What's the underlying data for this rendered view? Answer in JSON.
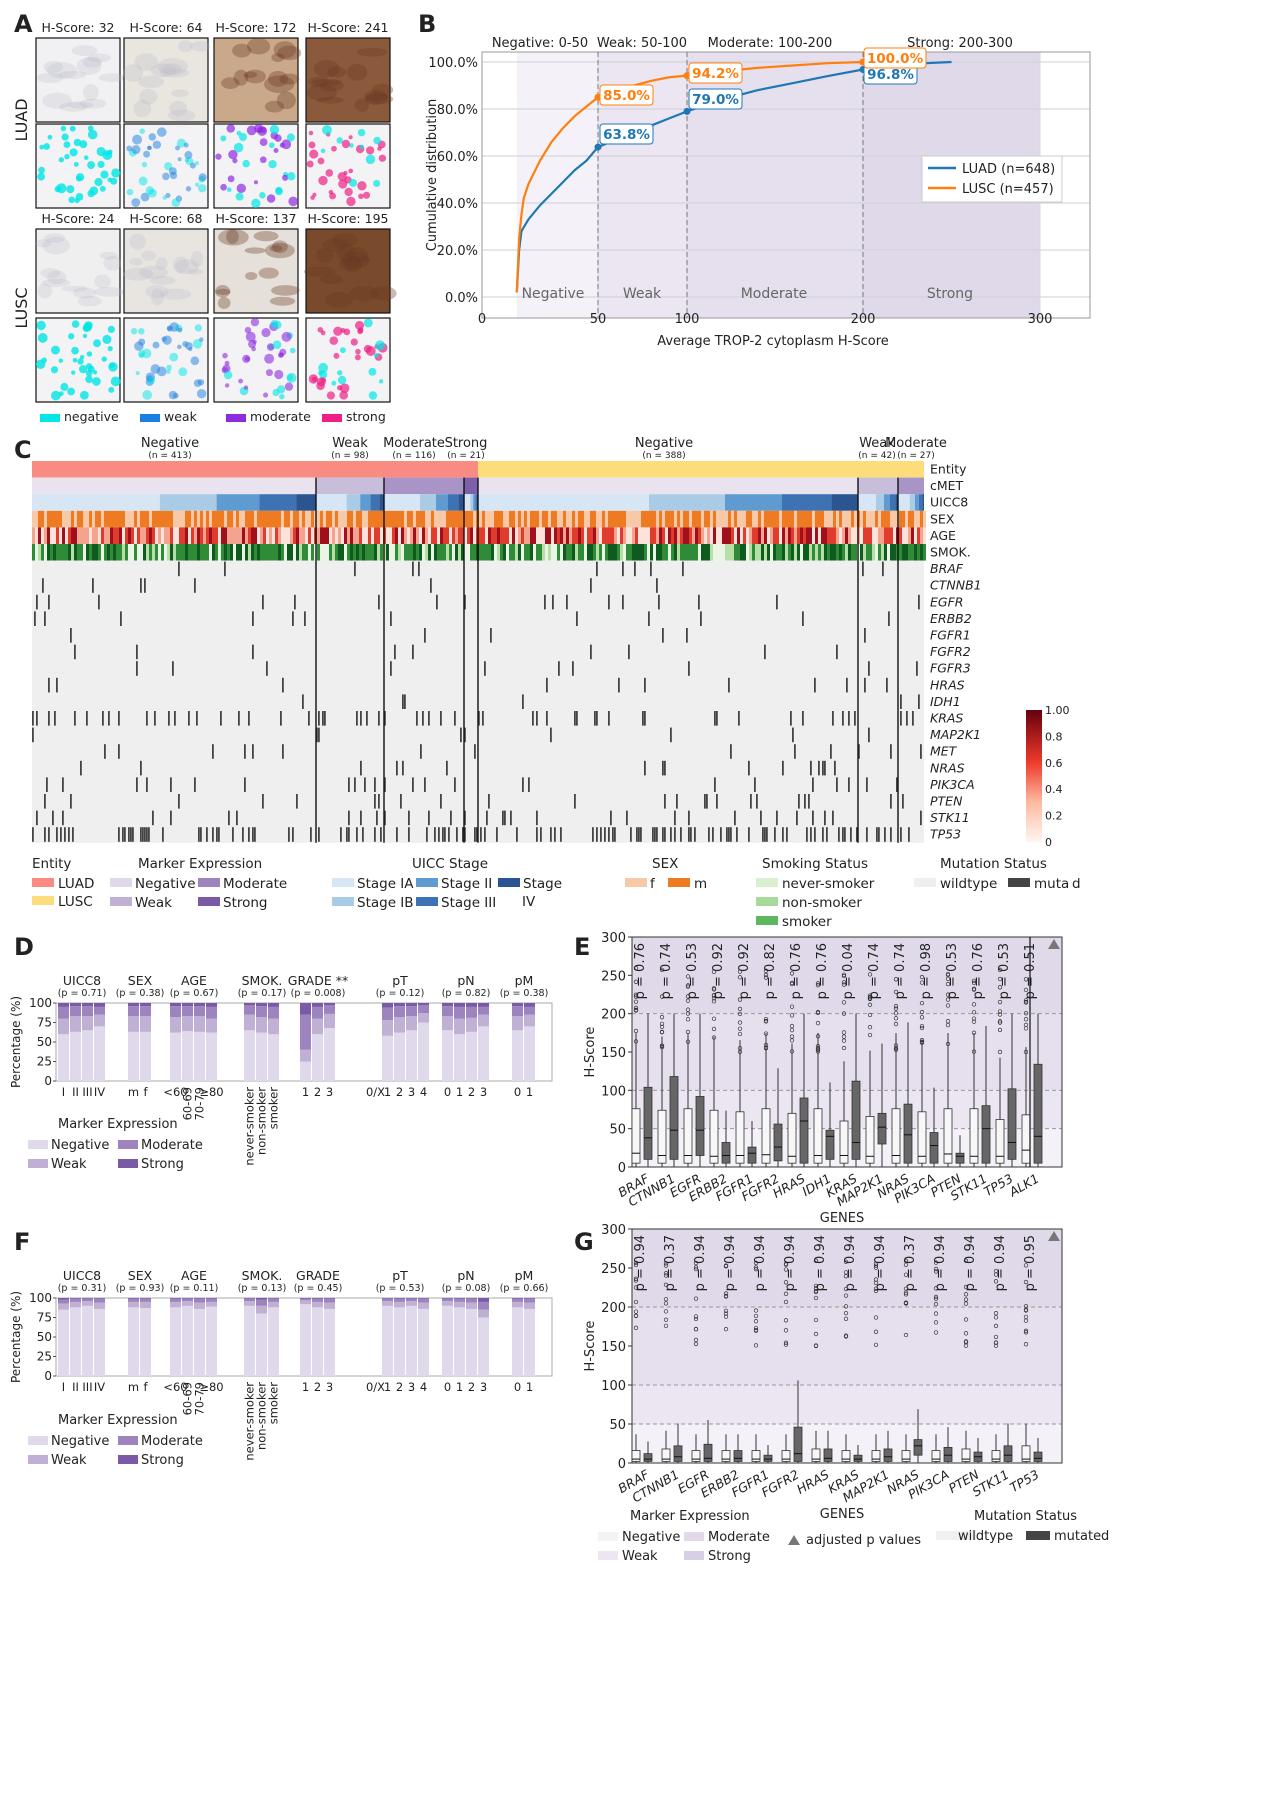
{
  "panel_letters": [
    "A",
    "B",
    "C",
    "D",
    "E",
    "F",
    "G"
  ],
  "colors": {
    "luad": "#1f77b4",
    "lusc": "#ff7f0e",
    "negative_region": "#f4f2f8",
    "weak_region": "#ebe6f1",
    "moderate_region": "#e6e0ee",
    "strong_region": "#e0d9ea",
    "marker_negative": "#dfd9eb",
    "marker_weak": "#bfb0d4",
    "marker_moderate": "#9d84bf",
    "marker_strong": "#7a5aa6",
    "wildtype": "#efefef",
    "mutated": "#444444",
    "seg_negative": "#00e5e5",
    "seg_weak": "#1a7fe0",
    "seg_moderate": "#8f2be0",
    "seg_strong": "#ee1f85"
  },
  "panel_a": {
    "row_labels": [
      "LUAD",
      "LUSC"
    ],
    "luad_scores": [
      "H-Score: 32",
      "H-Score: 64",
      "H-Score: 172",
      "H-Score: 241"
    ],
    "lusc_scores": [
      "H-Score: 24",
      "H-Score: 68",
      "H-Score: 137",
      "H-Score: 195"
    ],
    "legend": [
      "negative",
      "weak",
      "moderate",
      "strong"
    ]
  },
  "panel_b": {
    "range_labels": [
      "Negative: 0-50",
      "Weak: 50-100",
      "Moderate: 100-200",
      "Strong: 200-300"
    ],
    "region_labels": [
      "Negative",
      "Weak",
      "Moderate",
      "Strong"
    ],
    "callouts_luad": [
      "63.8%",
      "79.0%",
      "96.8%"
    ],
    "callouts_lusc": [
      "85.0%",
      "94.2%",
      "100.0%"
    ],
    "legend": [
      "LUAD (n=648)",
      "LUSC (n=457)"
    ]
  },
  "chart_data": [
    {
      "type": "line",
      "xlabel": "Average TROP-2 cytoplasm H-Score",
      "ylabel": "Cumulative distribution",
      "xlim": [
        0,
        300
      ],
      "ylim": [
        0,
        100
      ],
      "xticks": [
        "0",
        "50",
        "100",
        "200",
        "300"
      ],
      "yticks": [
        "0.0%",
        "20.0%",
        "40.0%",
        "60.0%",
        "80.0%",
        "100.0%"
      ],
      "x_scale": "piecewise (0-50, 50-100, 100-200, 200-300)",
      "legend_position": "right",
      "series": [
        {
          "name": "LUAD (n=648)",
          "x": [
            15,
            16,
            17,
            20,
            25,
            30,
            35,
            40,
            45,
            50,
            60,
            70,
            80,
            90,
            100,
            120,
            140,
            160,
            180,
            200,
            220,
            250
          ],
          "y": [
            2,
            20,
            28,
            33,
            39,
            44,
            49,
            54,
            58,
            63.8,
            67,
            70,
            73,
            76,
            79.0,
            84,
            88,
            91,
            94,
            96.8,
            99,
            100
          ]
        },
        {
          "name": "LUSC (n=457)",
          "x": [
            15,
            16,
            17,
            18,
            20,
            25,
            30,
            35,
            40,
            45,
            50,
            60,
            70,
            80,
            90,
            100,
            120,
            140,
            160,
            180,
            200
          ],
          "y": [
            2,
            25,
            35,
            42,
            48,
            58,
            66,
            72,
            77,
            81,
            85.0,
            88,
            90,
            92,
            93.5,
            94.2,
            96,
            97.5,
            98.5,
            99.5,
            100.0
          ]
        }
      ]
    },
    {
      "type": "heatmap",
      "groups": [
        {
          "label": "Negative",
          "n": "(n = 413)"
        },
        {
          "label": "Weak",
          "n": "(n = 98)"
        },
        {
          "label": "Moderate",
          "n": "(n = 116)"
        },
        {
          "label": "Strong",
          "n": "(n = 21)"
        },
        {
          "label": "Negative",
          "n": "(n = 388)"
        },
        {
          "label": "Weak",
          "n": "(n = 42)"
        },
        {
          "label": "Moderate",
          "n": "(n = 27)"
        }
      ],
      "rows": [
        "Entity",
        "cMET",
        "UICC8",
        "SEX",
        "AGE",
        "SMOK.",
        "BRAF",
        "CTNNB1",
        "EGFR",
        "ERBB2",
        "FGFR1",
        "FGFR2",
        "FGFR3",
        "HRAS",
        "IDH1",
        "KRAS",
        "MAP2K1",
        "MET",
        "NRAS",
        "PIK3CA",
        "PTEN",
        "STK11",
        "TP53"
      ],
      "colorbar_ticks": [
        "0",
        "0.2",
        "0.4",
        "0.6",
        "0.8",
        "1.00"
      ]
    },
    {
      "type": "bar",
      "title": "",
      "ylabel": "Percentage (%)",
      "ylim": [
        0,
        100
      ],
      "yticks": [
        "0",
        "25",
        "50",
        "75",
        "100"
      ],
      "groups": [
        {
          "name": "UICC8",
          "p": "(p = 0.71)",
          "categories": [
            "I",
            "II",
            "III",
            "IV"
          ]
        },
        {
          "name": "SEX",
          "p": "(p = 0.38)",
          "categories": [
            "m",
            "f"
          ]
        },
        {
          "name": "AGE",
          "p": "(p = 0.67)",
          "categories": [
            "<60",
            "60-69",
            "70-79",
            "≥80"
          ]
        },
        {
          "name": "SMOK.",
          "p": "(p = 0.17)",
          "categories": [
            "never-smoker",
            "non-smoker",
            "smoker"
          ]
        },
        {
          "name": "GRADE **",
          "p": "(p = 0.008)",
          "categories": [
            "1",
            "2",
            "3"
          ]
        },
        {
          "name": "pT",
          "p": "(p = 0.12)",
          "categories": [
            "0/X",
            "1",
            "2",
            "3",
            "4"
          ]
        },
        {
          "name": "pN",
          "p": "(p = 0.82)",
          "categories": [
            "0",
            "1",
            "2",
            "3"
          ]
        },
        {
          "name": "pM",
          "p": "(p = 0.38)",
          "categories": [
            "0",
            "1"
          ]
        }
      ],
      "stacks": [
        "Negative",
        "Weak",
        "Moderate",
        "Strong"
      ],
      "values": [
        [
          60,
          20,
          15,
          5
        ],
        [
          63,
          20,
          13,
          4
        ],
        [
          65,
          18,
          13,
          4
        ],
        [
          70,
          15,
          10,
          5
        ],
        [
          63,
          20,
          13,
          4
        ],
        [
          63,
          20,
          13,
          4
        ],
        [
          62,
          20,
          14,
          4
        ],
        [
          64,
          19,
          13,
          4
        ],
        [
          63,
          20,
          13,
          4
        ],
        [
          62,
          18,
          15,
          5
        ],
        [
          65,
          20,
          12,
          3
        ],
        [
          62,
          20,
          14,
          4
        ],
        [
          60,
          20,
          15,
          5
        ],
        [
          25,
          15,
          45,
          15
        ],
        [
          60,
          20,
          15,
          5
        ],
        [
          68,
          18,
          11,
          3
        ],
        [
          0,
          0,
          0,
          0
        ],
        [
          58,
          20,
          16,
          6
        ],
        [
          62,
          20,
          14,
          4
        ],
        [
          65,
          18,
          13,
          4
        ],
        [
          75,
          12,
          10,
          3
        ],
        [
          65,
          18,
          13,
          4
        ],
        [
          60,
          20,
          15,
          5
        ],
        [
          63,
          18,
          14,
          5
        ],
        [
          70,
          15,
          10,
          5
        ],
        [
          65,
          18,
          13,
          4
        ],
        [
          70,
          15,
          10,
          5
        ]
      ],
      "legend_title": "Marker Expression"
    },
    {
      "type": "box",
      "ylabel": "H-Score",
      "xlabel": "GENES",
      "ylim": [
        0,
        300
      ],
      "yticks": [
        "0",
        "50",
        "100",
        "150",
        "200",
        "250",
        "300"
      ],
      "genes": [
        "BRAF",
        "CTNNB1",
        "EGFR",
        "ERBB2",
        "FGFR1",
        "FGFR2",
        "HRAS",
        "IDH1",
        "KRAS",
        "MAP2K1",
        "NRAS",
        "PIK3CA",
        "PTEN",
        "STK11",
        "TP53",
        "ALK1"
      ],
      "p_values": [
        "p = 0.76",
        "p = 0.74",
        "p = 0.53",
        "p = 0.92",
        "p = 0.92",
        "p = 0.82",
        "p = 0.76",
        "p = 0.76",
        "p = 0.04",
        "p = 0.74",
        "p = 0.74",
        "p = 0.98",
        "p = 0.53",
        "p = 0.76",
        "p = 0.53",
        "p = 0.51"
      ],
      "wildtype_box": [
        [
          18,
          5,
          76
        ],
        [
          15,
          5,
          74
        ],
        [
          15,
          5,
          76
        ],
        [
          14,
          5,
          74
        ],
        [
          15,
          5,
          72
        ],
        [
          16,
          5,
          76
        ],
        [
          14,
          5,
          70
        ],
        [
          15,
          5,
          76
        ],
        [
          15,
          5,
          60
        ],
        [
          14,
          5,
          66
        ],
        [
          15,
          5,
          76
        ],
        [
          14,
          5,
          72
        ],
        [
          17,
          5,
          76
        ],
        [
          14,
          5,
          76
        ],
        [
          14,
          5,
          62
        ],
        [
          22,
          5,
          68
        ]
      ],
      "mutated_box": [
        [
          38,
          10,
          104
        ],
        [
          48,
          10,
          118
        ],
        [
          48,
          15,
          92
        ],
        [
          15,
          5,
          32
        ],
        [
          18,
          5,
          26
        ],
        [
          26,
          8,
          56
        ],
        [
          60,
          5,
          90
        ],
        [
          40,
          10,
          48
        ],
        [
          32,
          10,
          112
        ],
        [
          52,
          30,
          70
        ],
        [
          42,
          5,
          82
        ],
        [
          28,
          5,
          45
        ],
        [
          14,
          5,
          18
        ],
        [
          50,
          5,
          80
        ],
        [
          32,
          10,
          102
        ],
        [
          40,
          5,
          134
        ]
      ]
    },
    {
      "type": "bar",
      "ylabel": "Percentage (%)",
      "ylim": [
        0,
        100
      ],
      "yticks": [
        "0",
        "25",
        "50",
        "75",
        "100"
      ],
      "groups": [
        {
          "name": "UICC8",
          "p": "(p = 0.31)",
          "categories": [
            "I",
            "II",
            "III",
            "IV"
          ]
        },
        {
          "name": "SEX",
          "p": "(p = 0.93)",
          "categories": [
            "m",
            "f"
          ]
        },
        {
          "name": "AGE",
          "p": "(p = 0.11)",
          "categories": [
            "<60",
            "60-69",
            "70-79",
            "≥80"
          ]
        },
        {
          "name": "SMOK.",
          "p": "(p = 0.13)",
          "categories": [
            "never-smoker",
            "non-smoker",
            "smoker"
          ]
        },
        {
          "name": "GRADE",
          "p": "(p = 0.45)",
          "categories": [
            "1",
            "2",
            "3"
          ]
        },
        {
          "name": "pT",
          "p": "(p = 0.53)",
          "categories": [
            "0/X",
            "1",
            "2",
            "3",
            "4"
          ]
        },
        {
          "name": "pN",
          "p": "(p = 0.08)",
          "categories": [
            "0",
            "1",
            "2",
            "3"
          ]
        },
        {
          "name": "pM",
          "p": "(p = 0.66)",
          "categories": [
            "0",
            "1"
          ]
        }
      ],
      "stacks": [
        "Negative",
        "Weak",
        "Moderate",
        "Strong"
      ],
      "values": [
        [
          85,
          8,
          5,
          2
        ],
        [
          88,
          7,
          4,
          1
        ],
        [
          90,
          6,
          3,
          1
        ],
        [
          86,
          8,
          5,
          1
        ],
        [
          88,
          7,
          4,
          1
        ],
        [
          87,
          8,
          4,
          1
        ],
        [
          88,
          7,
          4,
          1
        ],
        [
          90,
          6,
          3,
          1
        ],
        [
          86,
          8,
          5,
          1
        ],
        [
          89,
          6,
          4,
          1
        ],
        [
          90,
          6,
          3,
          1
        ],
        [
          80,
          10,
          8,
          2
        ],
        [
          88,
          7,
          4,
          1
        ],
        [
          92,
          5,
          2,
          1
        ],
        [
          88,
          7,
          4,
          1
        ],
        [
          86,
          8,
          5,
          1
        ],
        [
          0,
          0,
          0,
          0
        ],
        [
          90,
          6,
          3,
          1
        ],
        [
          88,
          7,
          4,
          1
        ],
        [
          90,
          6,
          3,
          1
        ],
        [
          86,
          8,
          5,
          1
        ],
        [
          90,
          6,
          3,
          1
        ],
        [
          88,
          7,
          4,
          1
        ],
        [
          86,
          8,
          5,
          1
        ],
        [
          75,
          10,
          10,
          5
        ],
        [
          88,
          7,
          4,
          1
        ],
        [
          86,
          8,
          5,
          1
        ]
      ],
      "legend_title": "Marker Expression"
    },
    {
      "type": "box",
      "ylabel": "H-Score",
      "xlabel": "GENES",
      "ylim": [
        0,
        300
      ],
      "yticks": [
        "0",
        "50",
        "100",
        "150",
        "200",
        "250",
        "300"
      ],
      "genes": [
        "BRAF",
        "CTNNB1",
        "EGFR",
        "ERBB2",
        "FGFR1",
        "FGFR2",
        "HRAS",
        "KRAS",
        "MAP2K1",
        "NRAS",
        "PIK3CA",
        "PTEN",
        "STK11",
        "TP53"
      ],
      "p_values": [
        "p = 0.94",
        "p = 0.37",
        "p = 0.94",
        "p = 0.94",
        "p = 0.94",
        "p = 0.94",
        "p = 0.94",
        "p = 0.94",
        "p = 0.94",
        "p = 0.37",
        "p = 0.94",
        "p = 0.94",
        "p = 0.94",
        "p = 0.95"
      ],
      "wildtype_box": [
        [
          5,
          2,
          16
        ],
        [
          5,
          2,
          18
        ],
        [
          5,
          2,
          16
        ],
        [
          5,
          2,
          16
        ],
        [
          5,
          2,
          16
        ],
        [
          5,
          2,
          16
        ],
        [
          5,
          2,
          18
        ],
        [
          5,
          2,
          16
        ],
        [
          5,
          2,
          16
        ],
        [
          5,
          2,
          16
        ],
        [
          5,
          2,
          16
        ],
        [
          5,
          2,
          18
        ],
        [
          5,
          2,
          16
        ],
        [
          5,
          2,
          22
        ]
      ],
      "mutated_box": [
        [
          5,
          2,
          12
        ],
        [
          8,
          2,
          22
        ],
        [
          6,
          2,
          24
        ],
        [
          6,
          2,
          16
        ],
        [
          5,
          2,
          10
        ],
        [
          12,
          2,
          46
        ],
        [
          6,
          2,
          18
        ],
        [
          5,
          2,
          10
        ],
        [
          8,
          2,
          18
        ],
        [
          22,
          10,
          30
        ],
        [
          10,
          2,
          20
        ],
        [
          8,
          2,
          14
        ],
        [
          10,
          2,
          22
        ],
        [
          6,
          2,
          14
        ]
      ]
    }
  ],
  "panel_c_legend": {
    "entity_title": "Entity",
    "entity_items": [
      "LUAD",
      "LUSC"
    ],
    "marker_title": "Marker Expression",
    "marker_items": [
      "Negative",
      "Moderate",
      "Weak",
      "Strong"
    ],
    "uicc_title": "UICC Stage",
    "uicc_items": [
      "Stage IA",
      "Stage II",
      "Stage",
      "IV",
      "Stage IB",
      "Stage III"
    ],
    "sex_title": "SEX",
    "sex_items": [
      "f",
      "m"
    ],
    "smok_title": "Smoking Status",
    "smok_items": [
      "never-smoker",
      "non-smoker",
      "smoker"
    ],
    "mut_title": "Mutation Status",
    "mut_items": [
      "wildtype",
      "muta",
      "d"
    ]
  },
  "legend_d": {
    "title": "Marker Expression",
    "items": [
      "Negative",
      "Moderate",
      "Weak",
      "Strong"
    ]
  },
  "legend_g": {
    "marker_title": "Marker Expression",
    "marker_items": [
      "Negative",
      "Moderate",
      "Weak",
      "Strong"
    ],
    "adjusted": "adjusted p values",
    "mut_title": "Mutation Status",
    "mut_items": [
      "wildtype",
      "mutated"
    ]
  }
}
